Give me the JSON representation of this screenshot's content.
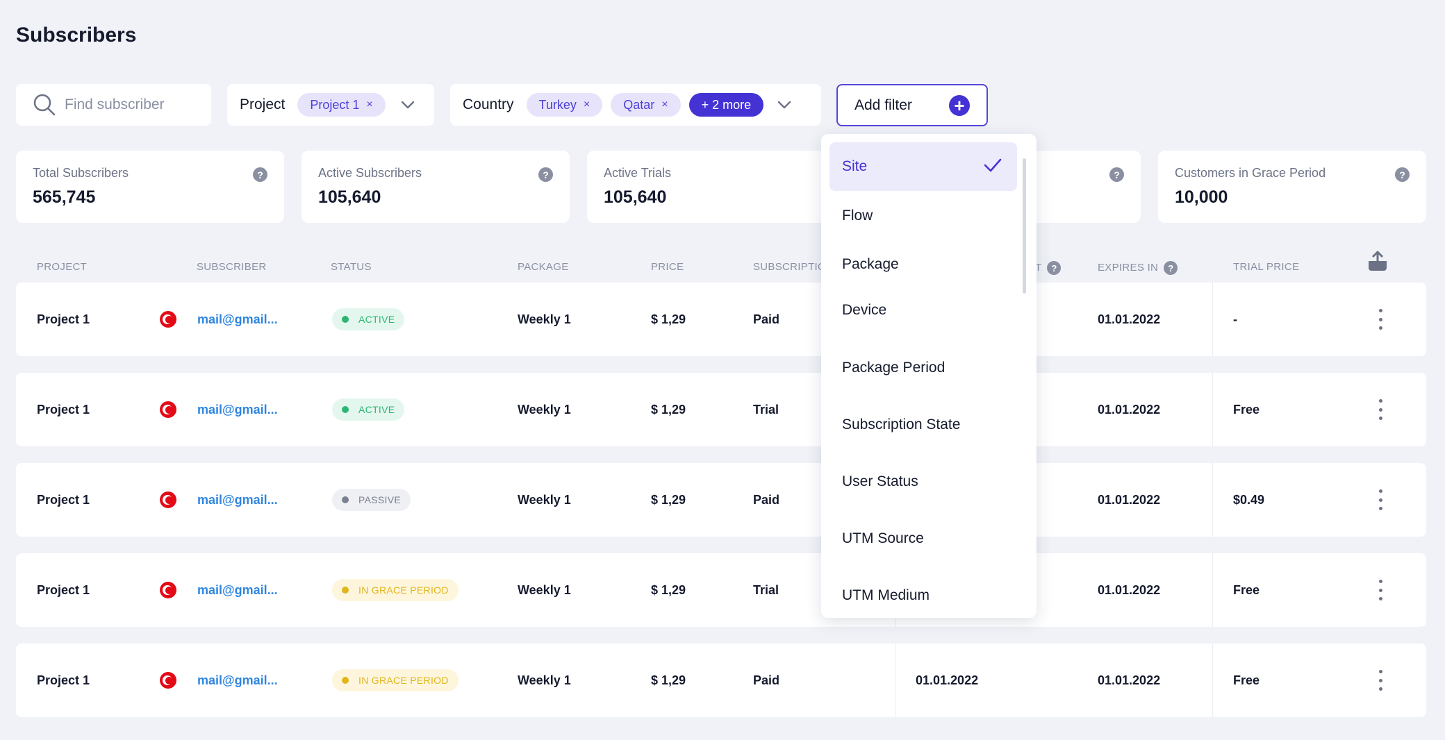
{
  "page": {
    "title": "Subscribers"
  },
  "search": {
    "placeholder": "Find subscriber"
  },
  "filters": {
    "project": {
      "label": "Project",
      "chips": [
        "Project 1"
      ]
    },
    "country": {
      "label": "Country",
      "chips": [
        "Turkey",
        "Qatar"
      ],
      "more": "+ 2 more"
    },
    "chip_remove": "×",
    "add_filter_label": "Add filter",
    "add_filter_plus": "+"
  },
  "stats": [
    {
      "label": "Total Subscribers",
      "value": "565,745"
    },
    {
      "label": "Active Subscribers",
      "value": "105,640"
    },
    {
      "label": "Active Trials",
      "value": "105,640"
    },
    {
      "label": "",
      "value": ""
    },
    {
      "label": "Customers in Grace Period",
      "value": "10,000"
    }
  ],
  "help_glyph": "?",
  "table": {
    "headers": {
      "project": "PROJECT",
      "subscriber": "SUBSCRIBER",
      "status": "STATUS",
      "package": "PACKAGE",
      "price": "PRICE",
      "subscription": "SUBSCRIPTIO",
      "hidden_col": "T",
      "expires_in": "EXPIRES IN",
      "trial_price": "TRIAL PRICE"
    },
    "rows": [
      {
        "project": "Project 1",
        "email": "mail@gmail...",
        "status": "ACTIVE",
        "status_type": "active",
        "package": "Weekly 1",
        "price": "$ 1,29",
        "subscription": "Paid",
        "date": "",
        "expires": "01.01.2022",
        "trial_price": "-"
      },
      {
        "project": "Project 1",
        "email": "mail@gmail...",
        "status": "ACTIVE",
        "status_type": "active",
        "package": "Weekly 1",
        "price": "$ 1,29",
        "subscription": "Trial",
        "date": "",
        "expires": "01.01.2022",
        "trial_price": "Free"
      },
      {
        "project": "Project 1",
        "email": "mail@gmail...",
        "status": "PASSIVE",
        "status_type": "passive",
        "package": "Weekly 1",
        "price": "$ 1,29",
        "subscription": "Paid",
        "date": "",
        "expires": "01.01.2022",
        "trial_price": "$0.49"
      },
      {
        "project": "Project 1",
        "email": "mail@gmail...",
        "status": "IN GRACE PERIOD",
        "status_type": "grace",
        "package": "Weekly 1",
        "price": "$ 1,29",
        "subscription": "Trial",
        "date": "",
        "expires": "01.01.2022",
        "trial_price": "Free"
      },
      {
        "project": "Project 1",
        "email": "mail@gmail...",
        "status": "IN GRACE PERIOD",
        "status_type": "grace",
        "package": "Weekly 1",
        "price": "$ 1,29",
        "subscription": "Paid",
        "date": "01.01.2022",
        "expires": "01.01.2022",
        "trial_price": "Free"
      }
    ]
  },
  "dropdown": {
    "items": [
      "Site",
      "Flow",
      "Package",
      "Device",
      "Package Period",
      "Subscription State",
      "User Status",
      "UTM Source",
      "UTM Medium"
    ],
    "selected_index": 0
  },
  "colors": {
    "accent": "#4432d4",
    "link": "#2f86e0",
    "active": "#2bb673",
    "passive": "#7a8092",
    "grace": "#e1b51b",
    "background": "#f0f2f7"
  },
  "icons": [
    "search-icon",
    "chevron-down-icon",
    "close-icon",
    "plus-icon",
    "help-icon",
    "export-icon",
    "flag-icon",
    "kebab-icon",
    "check-icon"
  ]
}
